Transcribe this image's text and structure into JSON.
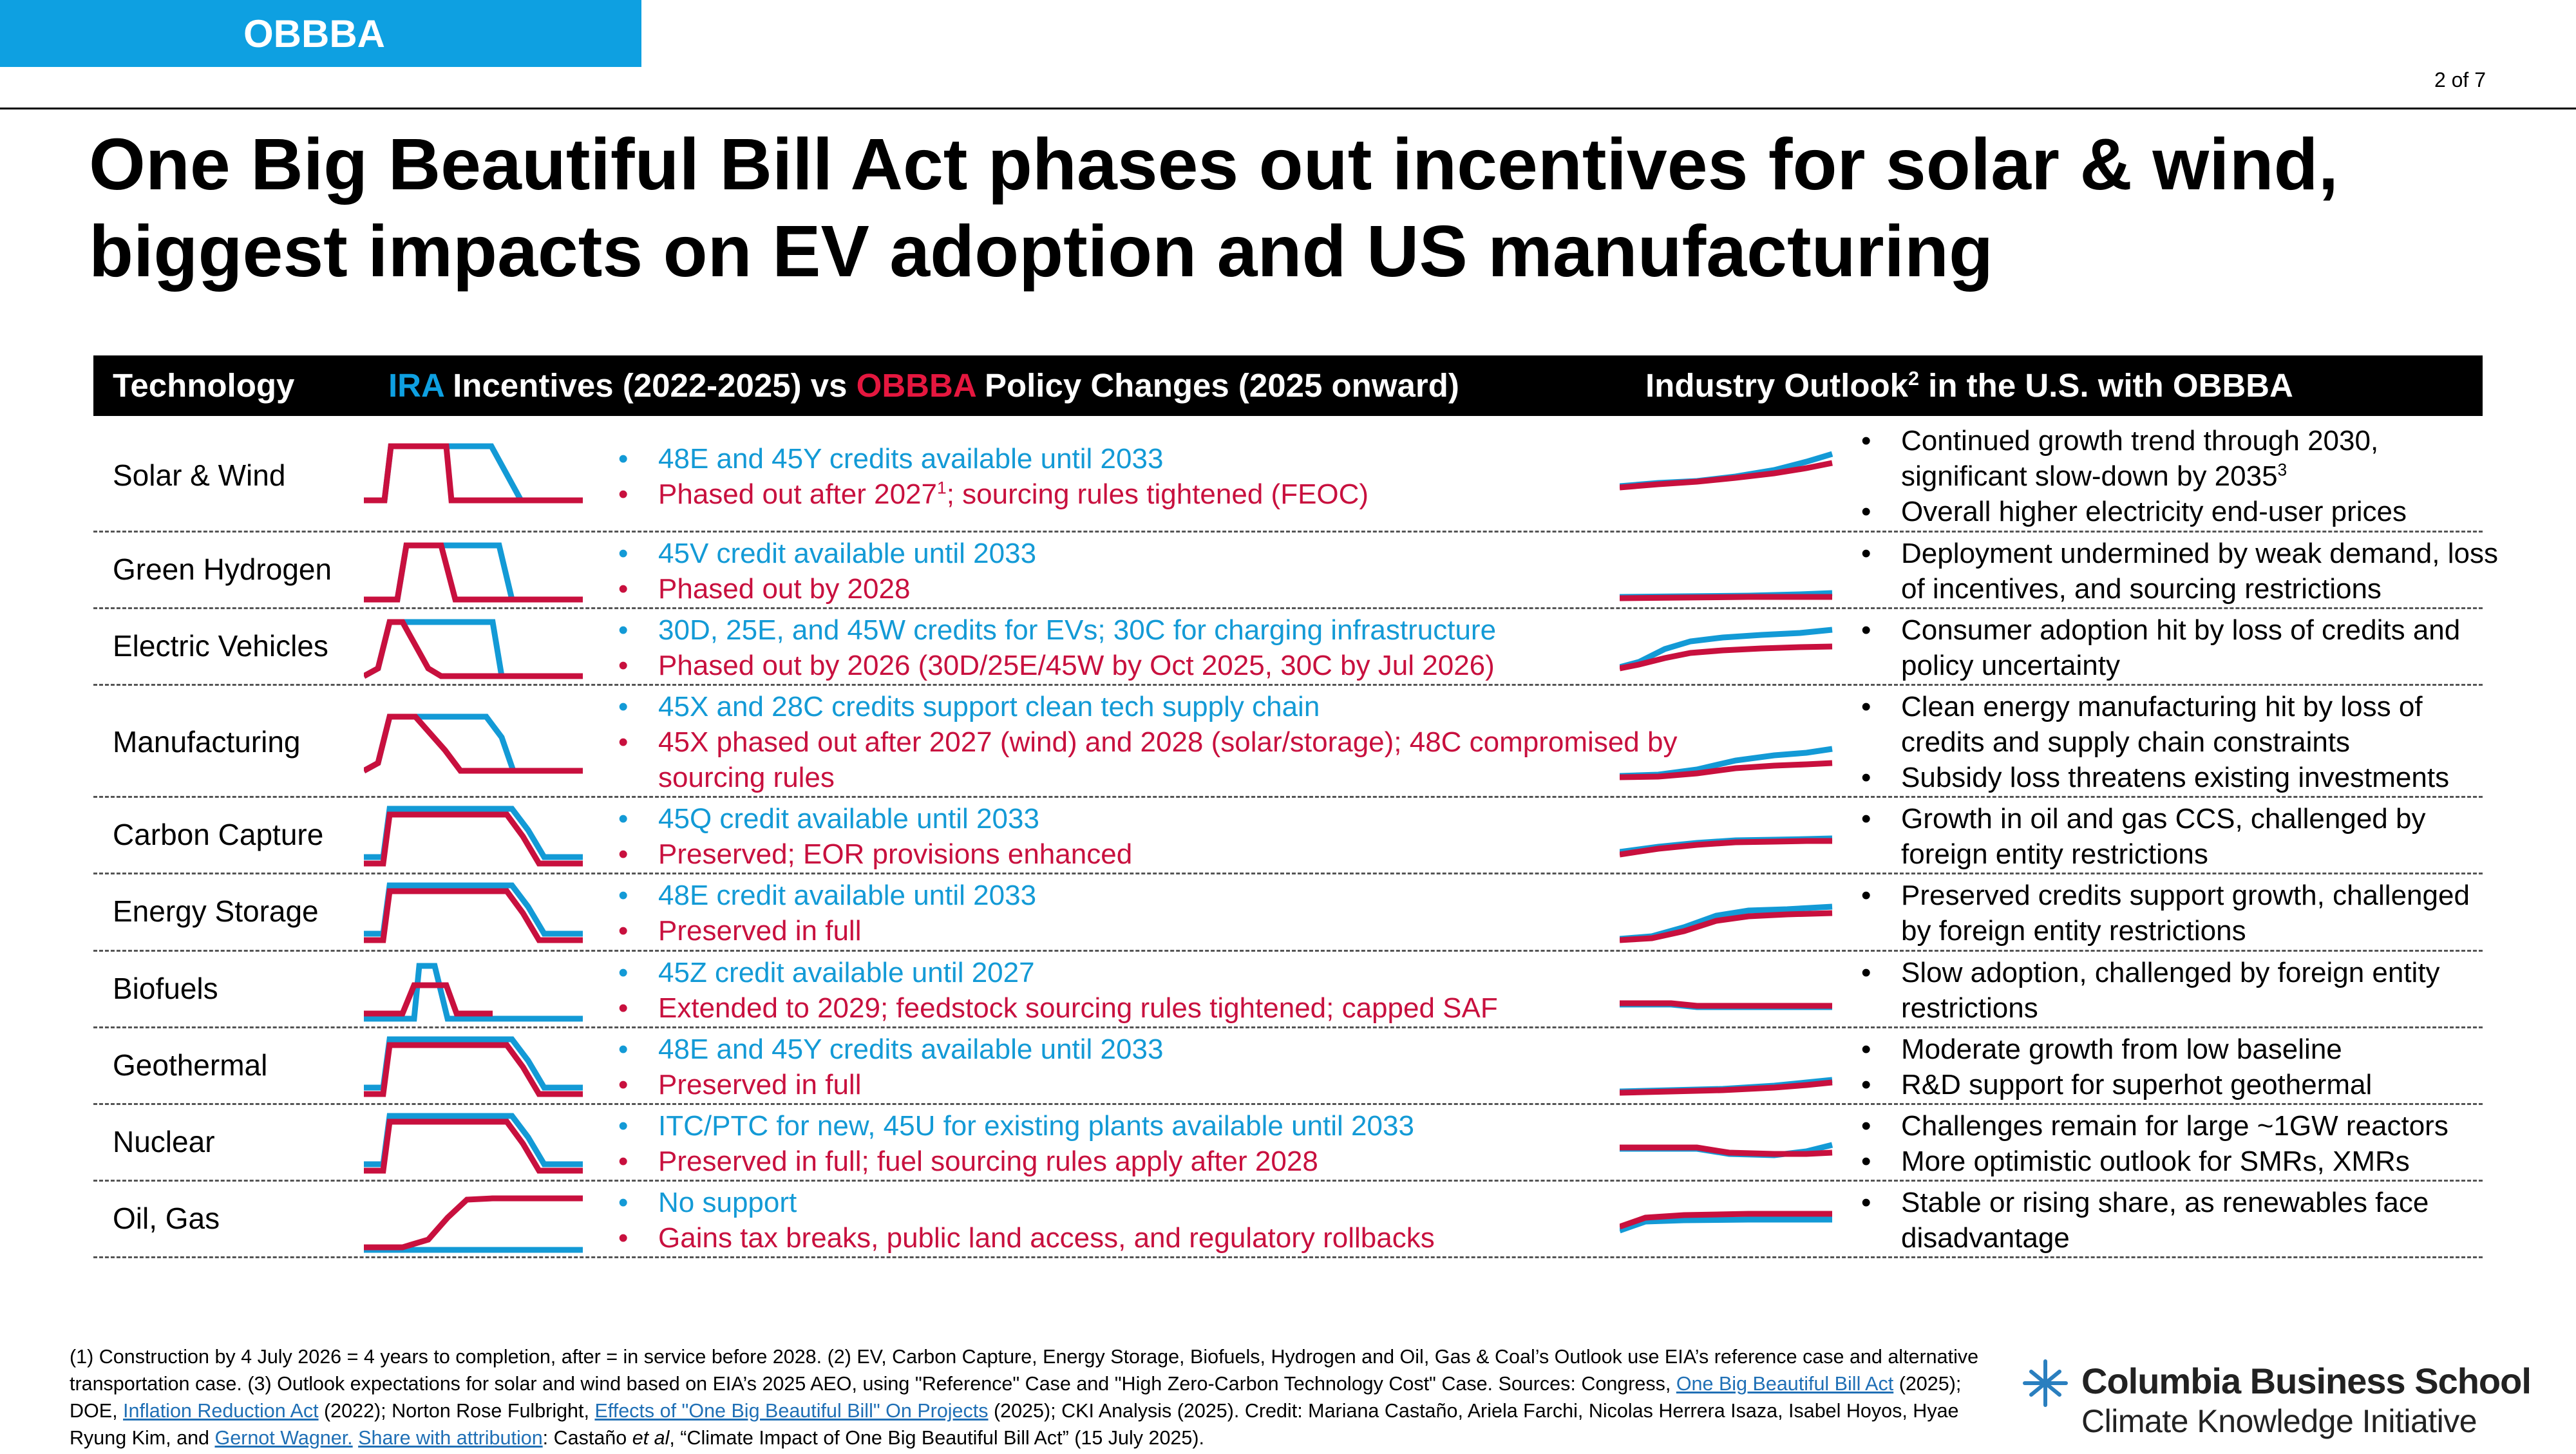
{
  "header": {
    "tag": "OBBBA",
    "page": "2 of 7",
    "title_line1": "One Big Beautiful Bill Act phases out incentives for solar & wind,",
    "title_line2": "biggest impacts on EV adoption and US manufacturing"
  },
  "table": {
    "col_technology": "Technology",
    "col_ira": "IRA",
    "col_incentives": " Incentives (2022-2025) vs ",
    "col_obbba": "OBBBA",
    "col_policy": " Policy Changes (2025 onward)",
    "col_outlook_a": "Industry Outlook",
    "col_outlook_sup": "2",
    "col_outlook_b": " in the U.S. with OBBBA",
    "rows": [
      {
        "tech": "Solar & Wind",
        "ira": "48E and 45Y credits available until 2033",
        "obbba": "Phased out after 2027",
        "obbba_sup": "1",
        "obbba_rest": "; sourcing rules tightened (FEOC)",
        "outlook": [
          "Continued growth trend through 2030, significant slow-down by 2035",
          "Overall higher electricity end-user prices"
        ],
        "outlook_sup": "3"
      },
      {
        "tech": "Green Hydrogen",
        "ira": "45V credit available until 2033",
        "obbba": "Phased out by 2028",
        "outlook": [
          "Deployment undermined by weak demand, loss of incentives, and sourcing restrictions"
        ]
      },
      {
        "tech": "Electric Vehicles",
        "ira": "30D, 25E, and 45W credits for EVs; 30C for charging infrastructure",
        "obbba": "Phased out by 2026 (30D/25E/45W by Oct 2025, 30C by Jul 2026)",
        "outlook": [
          "Consumer adoption hit by loss of credits and policy uncertainty"
        ]
      },
      {
        "tech": "Manufacturing",
        "ira": "45X and 28C credits support clean tech supply chain",
        "obbba": "45X phased out after 2027 (wind) and 2028 (solar/storage); 48C compromised by sourcing rules",
        "outlook": [
          "Clean energy manufacturing hit by loss of credits and supply chain constraints",
          "Subsidy loss threatens existing investments"
        ]
      },
      {
        "tech": "Carbon Capture",
        "ira": "45Q credit available until 2033",
        "obbba": "Preserved; EOR provisions enhanced",
        "outlook": [
          "Growth in oil and gas CCS, challenged by foreign entity restrictions"
        ]
      },
      {
        "tech": "Energy Storage",
        "ira": "48E credit available until 2033",
        "obbba": "Preserved in full",
        "outlook": [
          "Preserved credits support growth, challenged by foreign entity restrictions"
        ]
      },
      {
        "tech": "Biofuels",
        "ira": "45Z credit available until 2027",
        "obbba": "Extended to 2029; feedstock sourcing rules tightened; capped SAF",
        "outlook": [
          "Slow adoption, challenged by foreign entity restrictions"
        ]
      },
      {
        "tech": "Geothermal",
        "ira": "48E and 45Y credits available until 2033",
        "obbba": "Preserved in full",
        "outlook": [
          "Moderate growth from low baseline",
          "R&D support for superhot geothermal"
        ]
      },
      {
        "tech": "Nuclear",
        "ira": "ITC/PTC for new, 45U for existing plants available until 2033",
        "obbba": "Preserved in full; fuel sourcing rules apply after 2028",
        "outlook": [
          "Challenges remain for large ~1GW reactors",
          "More optimistic outlook for SMRs, XMRs"
        ]
      },
      {
        "tech": "Oil, Gas",
        "ira": "No support",
        "obbba": "Gains tax breaks, public land access, and regulatory rollbacks",
        "outlook": [
          "Stable or rising share, as renewables face disadvantage"
        ]
      }
    ]
  },
  "footnote": {
    "t1": "(1) Construction by 4 July 2026 = 4 years to completion, after = in service before 2028. (2) EV, Carbon Capture, Energy Storage, Biofuels, Hydrogen and Oil, Gas & Coal’s Outlook use EIA’s reference case and alternative transportation case. (3) Outlook expectations for solar and wind based on EIA’s 2025 AEO, using \"Reference\" Case and \"High Zero-Carbon Technology Cost\" Case. Sources: Congress, ",
    "l1": "One Big Beautiful Bill Act",
    "t2": " (2025); DOE, ",
    "l2": "Inflation Reduction Act",
    "t3": " (2022); Norton Rose Fulbright, ",
    "l3": "Effects of \"One Big Beautiful Bill\" On Projects",
    "t4": " (2025); CKI Analysis (2025). Credit: Mariana Castaño, Ariela Farchi, Nicolas Herrera Isaza, Isabel Hoyos, Hyae Ryung Kim, and ",
    "l4": "Gernot Wagner.",
    "t5": " ",
    "l5": "Share with attribution",
    "t6": ": Castaño ",
    "t6i": "et al",
    "t7": ", “Climate Impact of One Big Beautiful Bill Act” (15 July 2025)."
  },
  "logo": {
    "line1": "Columbia Business School",
    "line2": "Climate Knowledge Initiative"
  },
  "colors": {
    "ira_blue": "#139ad6",
    "obbba_red": "#c8103e",
    "tag_blue": "#0ea0e1"
  }
}
